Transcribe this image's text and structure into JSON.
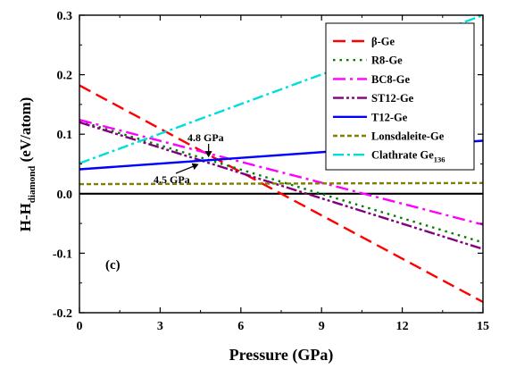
{
  "chart_data": {
    "type": "line",
    "title": "",
    "xlabel": "Pressure (GPa)",
    "ylabel": {
      "main": "H-H",
      "sub": "diamond",
      "units": " (eV/atom)"
    },
    "xlim": [
      0,
      15
    ],
    "ylim": [
      -0.2,
      0.3
    ],
    "xticks": [
      0,
      3,
      6,
      9,
      12,
      15
    ],
    "yticks": [
      -0.2,
      -0.1,
      0.0,
      0.1,
      0.2,
      0.3
    ],
    "panel_label": "(c)",
    "legend_position": "top-right",
    "series": [
      {
        "name": "β-Ge",
        "color": "#ff0000",
        "dash": "14,7",
        "x": [
          0,
          15
        ],
        "y": [
          0.182,
          -0.182
        ]
      },
      {
        "name": "R8-Ge",
        "color": "#008000",
        "dash": "2.5,5",
        "x": [
          0,
          15
        ],
        "y": [
          0.122,
          -0.082
        ]
      },
      {
        "name": "BC8-Ge",
        "color": "#ff00ff",
        "dash": "14,5,3,5",
        "x": [
          0,
          15
        ],
        "y": [
          0.124,
          -0.052
        ]
      },
      {
        "name": "ST12-Ge",
        "color": "#800080",
        "dash": "12,3,3,3,3,3",
        "x": [
          0,
          15
        ],
        "y": [
          0.12,
          -0.093
        ]
      },
      {
        "name": "T12-Ge",
        "color": "#0000ff",
        "dash": "",
        "x": [
          0,
          15
        ],
        "y": [
          0.041,
          0.089
        ]
      },
      {
        "name": "Lonsdaleite-Ge",
        "color": "#808000",
        "dash": "5,3",
        "x": [
          0,
          15
        ],
        "y": [
          0.016,
          0.018
        ]
      },
      {
        "name": "Clathrate Ge",
        "name_sub": "136",
        "color": "#00dddd",
        "dash": "12,4,3,4",
        "x": [
          0,
          15
        ],
        "y": [
          0.051,
          0.3
        ]
      }
    ],
    "reference_line": {
      "y": 0.0,
      "color": "#000000"
    },
    "annotations": [
      {
        "text": "4.8 GPa",
        "x": 4.8,
        "y": 0.058
      },
      {
        "text": "4.5 GPa",
        "x": 4.5,
        "y": 0.055
      }
    ]
  }
}
